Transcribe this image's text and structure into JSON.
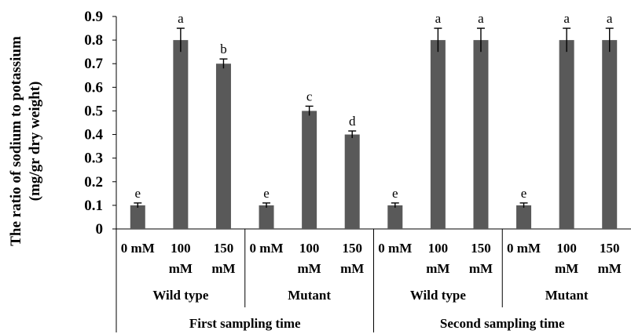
{
  "chart_data": {
    "type": "bar",
    "ylabel_lines": [
      "The ratio of sodium to potassium",
      "(mg/gr dry weight)"
    ],
    "ylim": [
      0,
      0.9
    ],
    "yticks": [
      "0",
      "0.1",
      "0.2",
      "0.3",
      "0.4",
      "0.5",
      "0.6",
      "0.7",
      "0.8",
      "0.9"
    ],
    "bar_color": "#595959",
    "bars": [
      {
        "label_lines": [
          "0 mM"
        ],
        "value": 0.1,
        "error": 0.01,
        "letter": "e"
      },
      {
        "label_lines": [
          "100",
          "mM"
        ],
        "value": 0.8,
        "error": 0.05,
        "letter": "a"
      },
      {
        "label_lines": [
          "150",
          "mM"
        ],
        "value": 0.7,
        "error": 0.02,
        "letter": "b"
      },
      {
        "label_lines": [
          "0 mM"
        ],
        "value": 0.1,
        "error": 0.01,
        "letter": "e"
      },
      {
        "label_lines": [
          "100",
          "mM"
        ],
        "value": 0.5,
        "error": 0.02,
        "letter": "c"
      },
      {
        "label_lines": [
          "150",
          "mM"
        ],
        "value": 0.4,
        "error": 0.015,
        "letter": "d"
      },
      {
        "label_lines": [
          "0 mM"
        ],
        "value": 0.1,
        "error": 0.01,
        "letter": "e"
      },
      {
        "label_lines": [
          "100",
          "mM"
        ],
        "value": 0.8,
        "error": 0.05,
        "letter": "a"
      },
      {
        "label_lines": [
          "150",
          "mM"
        ],
        "value": 0.8,
        "error": 0.05,
        "letter": "a"
      },
      {
        "label_lines": [
          "0 mM"
        ],
        "value": 0.1,
        "error": 0.01,
        "letter": "e"
      },
      {
        "label_lines": [
          "100",
          "mM"
        ],
        "value": 0.8,
        "error": 0.05,
        "letter": "a"
      },
      {
        "label_lines": [
          "150",
          "mM"
        ],
        "value": 0.8,
        "error": 0.05,
        "letter": "a"
      }
    ],
    "genotype_groups": [
      "Wild type",
      "Mutant",
      "Wild type",
      "Mutant"
    ],
    "sampling_groups": [
      "First sampling time",
      "Second sampling time"
    ]
  }
}
